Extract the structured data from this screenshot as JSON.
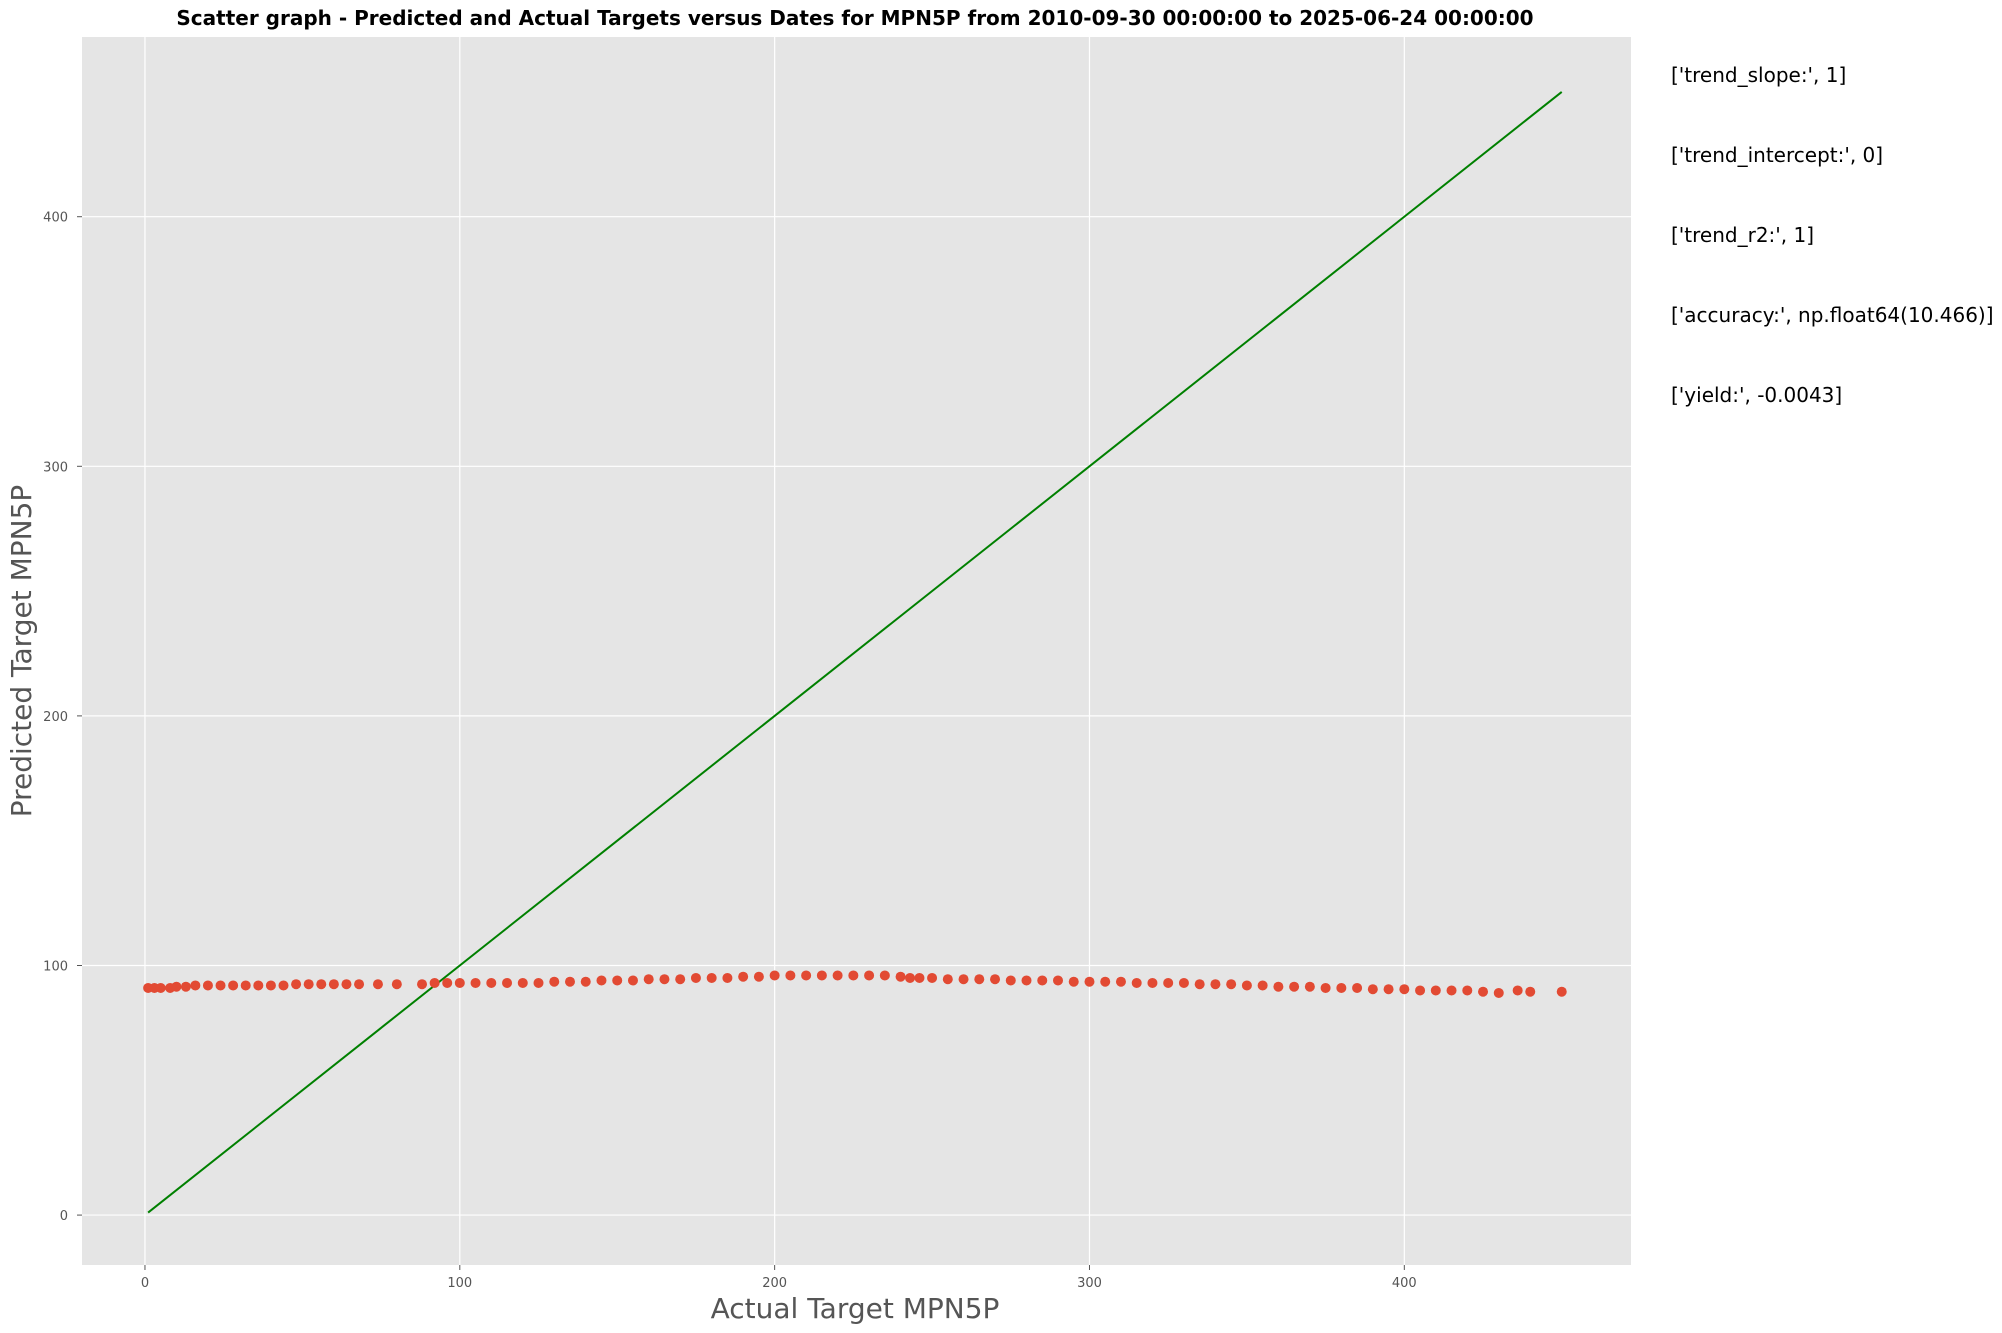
{
  "chart_data": {
    "type": "scatter",
    "title": "Scatter graph - Predicted and Actual Targets versus Dates for MPN5P from 2010-09-30 00:00:00 to 2025-06-24 00:00:00",
    "xlabel": "Actual Target MPN5P",
    "ylabel": "Predicted Target MPN5P",
    "xlim": [
      -20,
      472
    ],
    "ylim": [
      -20,
      472
    ],
    "x_ticks": [
      0,
      100,
      200,
      300,
      400
    ],
    "y_ticks": [
      0,
      100,
      200,
      300,
      400
    ],
    "grid": true,
    "legend": "none",
    "colors": {
      "points": "#E24A33",
      "trend_line": "#008000",
      "plot_background": "#E5E5E5",
      "grid": "#FFFFFF"
    },
    "trend_line": {
      "x": [
        1,
        450
      ],
      "y": [
        1,
        450
      ]
    },
    "series": [
      {
        "x": [
          1,
          3,
          5,
          8,
          10,
          13,
          16,
          20,
          24,
          28,
          32,
          36,
          40,
          44,
          48,
          52,
          56,
          60,
          64,
          68,
          74,
          80,
          88,
          92,
          96,
          100,
          105,
          110,
          115,
          120,
          125,
          130,
          135,
          140,
          145,
          150,
          155,
          160,
          165,
          170,
          175,
          180,
          185,
          190,
          195,
          200,
          205,
          210,
          215,
          220,
          225,
          230,
          235,
          240,
          243,
          246,
          250,
          255,
          260,
          265,
          270,
          275,
          280,
          285,
          290,
          295,
          300,
          305,
          310,
          315,
          320,
          325,
          330,
          335,
          340,
          345,
          350,
          355,
          360,
          365,
          370,
          375,
          380,
          385,
          390,
          395,
          400,
          405,
          410,
          415,
          420,
          425,
          430,
          436,
          440,
          450
        ],
        "y": [
          91,
          91,
          91,
          91,
          91.5,
          91.5,
          92,
          92,
          92,
          92,
          92,
          92,
          92,
          92,
          92.5,
          92.5,
          92.5,
          92.5,
          92.5,
          92.5,
          92.5,
          92.5,
          92.5,
          93,
          93,
          93,
          93,
          93,
          93,
          93,
          93,
          93.5,
          93.5,
          93.5,
          94,
          94,
          94,
          94.5,
          94.5,
          94.5,
          95,
          95,
          95,
          95.5,
          95.5,
          96,
          96,
          96,
          96,
          96,
          96,
          96,
          96,
          95.5,
          95,
          95,
          95,
          94.5,
          94.5,
          94.5,
          94.5,
          94,
          94,
          94,
          94,
          93.5,
          93.5,
          93.5,
          93.5,
          93,
          93,
          93,
          93,
          92.5,
          92.5,
          92.5,
          92,
          92,
          91.5,
          91.5,
          91.5,
          91,
          91,
          91,
          90.5,
          90.5,
          90.5,
          90,
          90,
          90,
          90,
          89.5,
          89,
          90,
          89.5,
          89.5
        ]
      }
    ]
  },
  "annotations": [
    "['trend_slope:', 1]",
    "['trend_intercept:', 0]",
    "['trend_r2:', 1]",
    "['accuracy:', np.float64(10.466)]",
    "['yield:', -0.0043]"
  ]
}
